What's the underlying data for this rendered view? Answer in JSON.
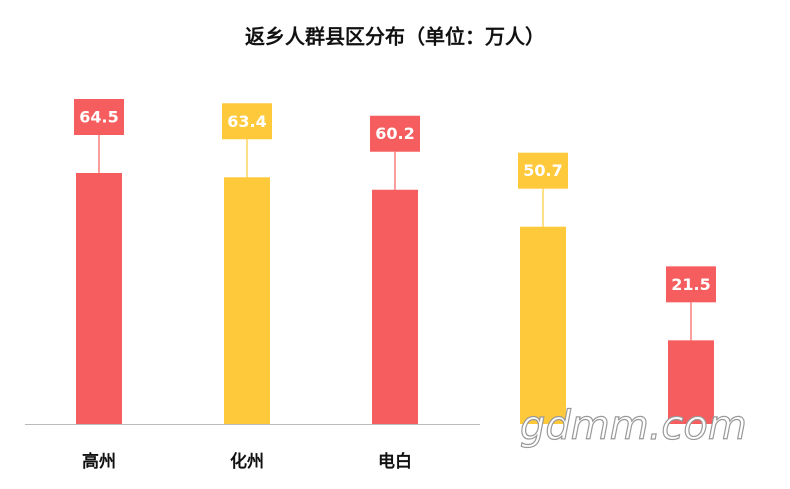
{
  "chart_data": {
    "type": "bar",
    "title": "返乡人群县区分布（单位：万人）",
    "categories": [
      "高州",
      "化州",
      "电白",
      null,
      null
    ],
    "values": [
      64.5,
      63.4,
      60.2,
      50.7,
      21.5
    ],
    "colors": [
      "#f65d5e",
      "#ffc93c",
      "#f65d5e",
      "#ffc93c",
      "#f65d5e"
    ],
    "watermark": "gdmm.com"
  }
}
